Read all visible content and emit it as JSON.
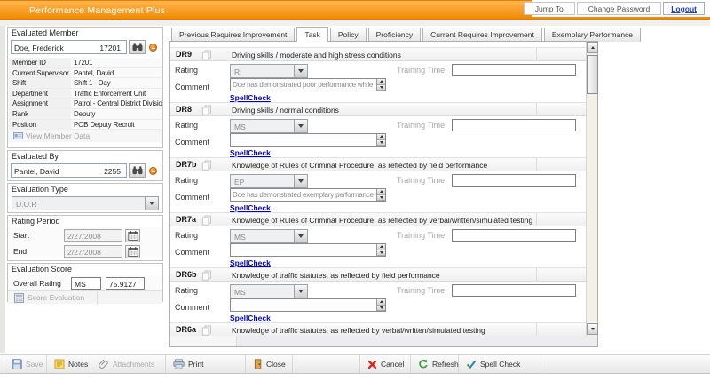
{
  "app": {
    "title": "Performance Management Plus"
  },
  "header": {
    "jump_to": "Jump To",
    "change_password": "Change Password",
    "logout": "Logout"
  },
  "sidebar": {
    "evaluated_member": {
      "title": "Evaluated Member",
      "name": "Doe, Frederick",
      "id": "17201",
      "fields": [
        {
          "label": "Member ID",
          "value": "17201"
        },
        {
          "label": "Current Supervisor",
          "value": "Pantel, David"
        },
        {
          "label": "Shift",
          "value": "Shift 1 - Day"
        },
        {
          "label": "Department",
          "value": "Traffic Enforcement Unit"
        },
        {
          "label": "Assignment",
          "value": "Patrol - Central District Division"
        },
        {
          "label": "Rank",
          "value": "Deputy"
        },
        {
          "label": "Position",
          "value": "POB Deputy Recruit"
        }
      ],
      "view_button": "View Member Data"
    },
    "evaluated_by": {
      "title": "Evaluated By",
      "name": "Pantel, David",
      "id": "2255"
    },
    "evaluation_type": {
      "title": "Evaluation Type",
      "value": "D.O.R"
    },
    "rating_period": {
      "title": "Rating Period",
      "rows": [
        {
          "label": "Start",
          "value": "2/27/2008"
        },
        {
          "label": "End",
          "value": "2/27/2008"
        }
      ]
    },
    "evaluation_score": {
      "title": "Evaluation Score",
      "overall_label": "Overall Rating",
      "rating": "MS",
      "score": "75.9127",
      "button": "Score Evaluation"
    }
  },
  "tabs": [
    {
      "label": "Previous Requires Improvement",
      "active": false
    },
    {
      "label": "Task",
      "active": true
    },
    {
      "label": "Policy",
      "active": false
    },
    {
      "label": "Proficiency",
      "active": false
    },
    {
      "label": "Current Requires Improvement",
      "active": false
    },
    {
      "label": "Exemplary Performance",
      "active": false
    }
  ],
  "labels": {
    "rating": "Rating",
    "comment": "Comment",
    "training_time": "Training Time",
    "spellcheck": "SpellCheck"
  },
  "sections": [
    {
      "code": "DR9",
      "title": "Driving skills / moderate and high stress conditions",
      "rating": "RI",
      "comment": "Doe has demonstrated poor performance while driving",
      "training_time": "",
      "header_only": false
    },
    {
      "code": "DR8",
      "title": "Driving skills / normal conditions",
      "rating": "MS",
      "comment": "",
      "training_time": "",
      "header_only": false
    },
    {
      "code": "DR7b",
      "title": "Knowledge of Rules of Criminal Procedure, as reflected by field performance",
      "rating": "EP",
      "comment": "Doe has demonstrated exemplary performance in",
      "training_time": "",
      "header_only": false
    },
    {
      "code": "DR7a",
      "title": "Knowledge of Rules of Criminal Procedure, as reflected by verbal/written/simulated testing",
      "rating": "MS",
      "comment": "",
      "training_time": "",
      "header_only": false
    },
    {
      "code": "DR6b",
      "title": "Knowledge of traffic statutes, as reflected by field performance",
      "rating": "MS",
      "comment": "",
      "training_time": "",
      "header_only": false
    },
    {
      "code": "DR6a",
      "title": "Knowledge of traffic statutes, as reflected by verbal/written/simulated testing",
      "rating": "",
      "comment": "",
      "training_time": "",
      "header_only": true
    }
  ],
  "toolbar": {
    "left": [
      {
        "label": "Save",
        "icon": "save-icon",
        "disabled": true
      },
      {
        "label": "Notes",
        "icon": "notes-icon",
        "disabled": false
      },
      {
        "label": "Attachments",
        "icon": "attachment-icon",
        "disabled": true
      },
      {
        "label": "Print",
        "icon": "print-icon",
        "disabled": false
      },
      {
        "label": "Close",
        "icon": "close-icon",
        "disabled": false
      }
    ],
    "right": [
      {
        "label": "Cancel",
        "icon": "cancel-icon",
        "disabled": false
      },
      {
        "label": "Refresh",
        "icon": "refresh-icon",
        "disabled": false
      },
      {
        "label": "Spell Check",
        "icon": "spellcheck-icon",
        "disabled": false
      }
    ]
  },
  "colors": {
    "accent_orange": "#F08A00",
    "link_blue": "#0000CC",
    "disabled_text": "#9A9A9A",
    "cancel_red": "#D42A1E",
    "refresh_green": "#3AA33A"
  }
}
